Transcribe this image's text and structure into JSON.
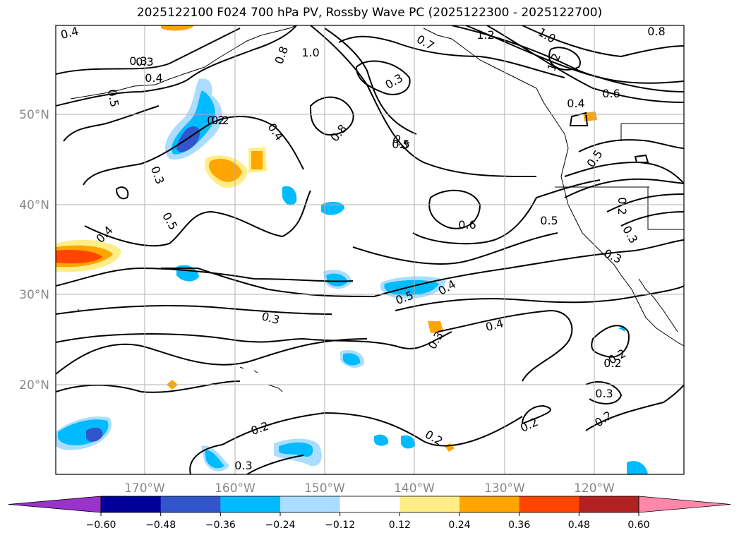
{
  "title": "2025122100 F024 700 hPa PV, Rossby Wave PC (2025122300 - 2025122700)",
  "map": {
    "lat_ticks": [
      "50°N",
      "40°N",
      "30°N",
      "20°N"
    ],
    "lon_ticks": [
      "170°W",
      "160°W",
      "150°W",
      "140°W",
      "130°W",
      "120°W"
    ],
    "grid": true,
    "coastline_color": "#000000",
    "contour_color": "#000000",
    "contour_labels": [
      "0.4",
      "0.3",
      "0.4",
      "0.5",
      "0.2",
      "0.4",
      "0.3",
      "0.5",
      "0.4",
      "0.3",
      "0.3",
      "0.2",
      "0.3",
      "0.2",
      "0.2",
      "0.3",
      "0.2",
      "0.3",
      "0.5",
      "0.4",
      "0.3",
      "0.2",
      "0.2",
      "0.5",
      "0.6",
      "0.5",
      "0.4",
      "0.5",
      "0.2",
      "0.2",
      "0.3",
      "0.5",
      "0.8",
      "0.3",
      "0.7",
      "1.0",
      "1.2",
      "1.0",
      "1.2",
      "0.8",
      "0.6",
      "0.4",
      "0.8"
    ]
  },
  "colorbar": {
    "colors": [
      "#9933cc",
      "#000099",
      "#3355cc",
      "#00bbff",
      "#aaddff",
      "#ffffff",
      "#ffee88",
      "#ffa500",
      "#ff4500",
      "#b22222",
      "#ff88aa"
    ],
    "tick_labels": [
      "−0.60",
      "−0.48",
      "−0.36",
      "−0.24",
      "−0.12",
      "0.12",
      "0.24",
      "0.36",
      "0.48",
      "0.60"
    ]
  }
}
